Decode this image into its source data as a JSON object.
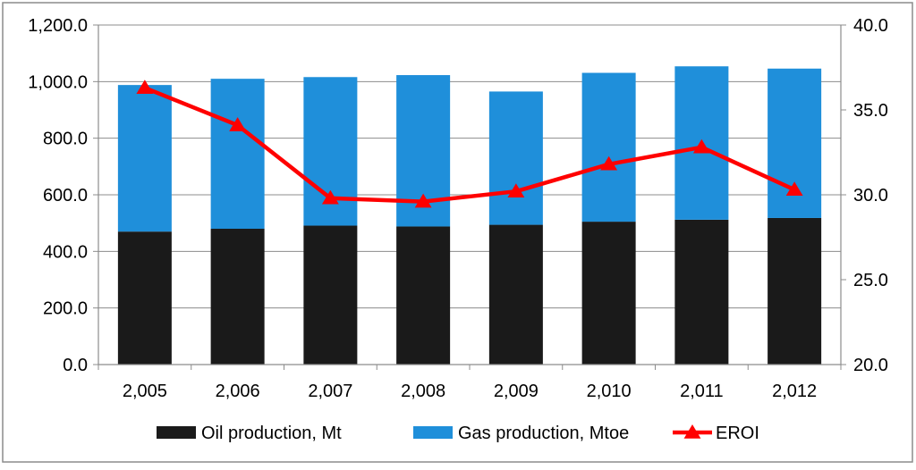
{
  "chart_data": {
    "type": "bar",
    "stacked": true,
    "categories": [
      "2,005",
      "2,006",
      "2,007",
      "2,008",
      "2,009",
      "2,010",
      "2,011",
      "2,012"
    ],
    "series": [
      {
        "name": "Oil production, Mt",
        "type": "bar",
        "axis": "left",
        "color": "#1a1a1a",
        "values": [
          470,
          480,
          491,
          488,
          494,
          505,
          512,
          518
        ]
      },
      {
        "name": "Gas production, Mtoe",
        "type": "bar",
        "axis": "left",
        "color": "#1f8fda",
        "values": [
          518,
          530,
          525,
          535,
          471,
          526,
          542,
          528
        ]
      },
      {
        "name": "EROI",
        "type": "line",
        "axis": "right",
        "color": "#ff0000",
        "marker": "triangle",
        "values": [
          36.3,
          34.1,
          29.8,
          29.6,
          30.2,
          31.8,
          32.8,
          30.3
        ]
      }
    ],
    "y_left": {
      "ylim": [
        0,
        1200
      ],
      "ticks": [
        "0.0",
        "200.0",
        "400.0",
        "600.0",
        "800.0",
        "1,000.0",
        "1,200.0"
      ]
    },
    "y_right": {
      "ylim": [
        20,
        40
      ],
      "ticks": [
        "20.0",
        "25.0",
        "30.0",
        "35.0",
        "40.0"
      ]
    },
    "grid": true,
    "legend": "bottom"
  }
}
